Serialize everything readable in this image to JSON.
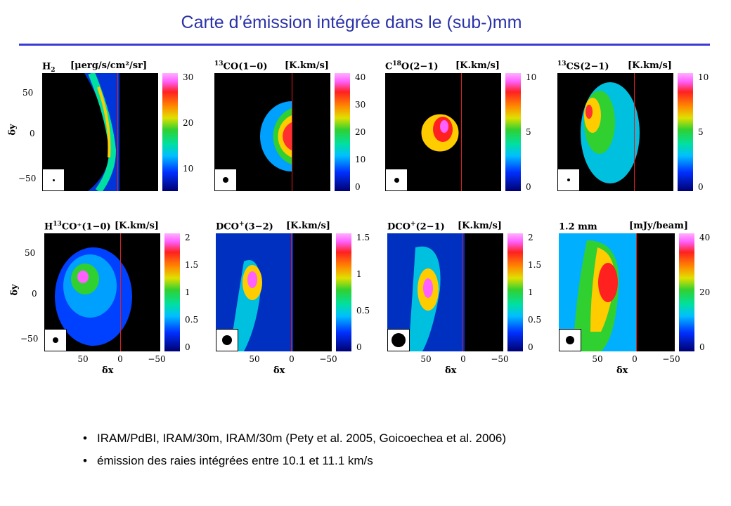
{
  "title": "Carte d’émission intégrée dans le (sub-)mm",
  "axes": {
    "y_label": "δy",
    "x_label": "δx",
    "y_ticks": [
      "50",
      "0",
      "−50"
    ],
    "x_ticks": [
      "50",
      "0",
      "−50"
    ]
  },
  "panels": [
    {
      "id": "h2",
      "label_main": "H",
      "label_sub": "2",
      "label_sup": "",
      "label_rest": "",
      "unit": "[μerg/s/cm²/sr]",
      "ticks": [
        "30",
        "20",
        "10"
      ]
    },
    {
      "id": "13co",
      "label_main": "",
      "label_sup": "13",
      "label_sub": "",
      "label_rest": "CO(1−0)",
      "unit": "[K.km/s]",
      "ticks": [
        "40",
        "30",
        "20",
        "10",
        "0"
      ]
    },
    {
      "id": "c18o",
      "label_main": "C",
      "label_sup": "18",
      "label_sub": "",
      "label_rest": "O(2−1)",
      "unit": "[K.km/s]",
      "ticks": [
        "10",
        "5",
        "0"
      ]
    },
    {
      "id": "c34s",
      "label_main": "",
      "label_sup": "13",
      "label_sub": "",
      "label_rest": "CS(2−1)",
      "unit": "[K.km/s]",
      "ticks": [
        "10",
        "5",
        "0"
      ]
    },
    {
      "id": "h13co",
      "label_main": "H",
      "label_sup": "13",
      "label_sub": "",
      "label_rest": "CO⁺(1−0)",
      "unit": "[K.km/s]",
      "ticks": [
        "2",
        "1.5",
        "1",
        "0.5",
        "0"
      ]
    },
    {
      "id": "dco32",
      "label_main": "DCO",
      "label_sup": "+",
      "label_sub": "",
      "label_rest": "(3−2)",
      "unit": "[K.km/s]",
      "ticks": [
        "1.5",
        "1",
        "0.5",
        "0"
      ]
    },
    {
      "id": "dco21",
      "label_main": "DCO",
      "label_sup": "+",
      "label_sub": "",
      "label_rest": "(2−1)",
      "unit": "[K.km/s]",
      "ticks": [
        "2",
        "1.5",
        "1",
        "0.5",
        "0"
      ]
    },
    {
      "id": "mm",
      "label_main": "1.2 mm",
      "label_sup": "",
      "label_sub": "",
      "label_rest": "",
      "unit": "[mJy/beam]",
      "ticks": [
        "40",
        "20",
        "0"
      ]
    }
  ],
  "bullets": [
    "IRAM/PdBI, IRAM/30m, IRAM/30m (Pety et al. 2005, Goicoechea et al. 2006)",
    "émission des raies intégrées entre 10.1 et 11.1 km/s"
  ]
}
